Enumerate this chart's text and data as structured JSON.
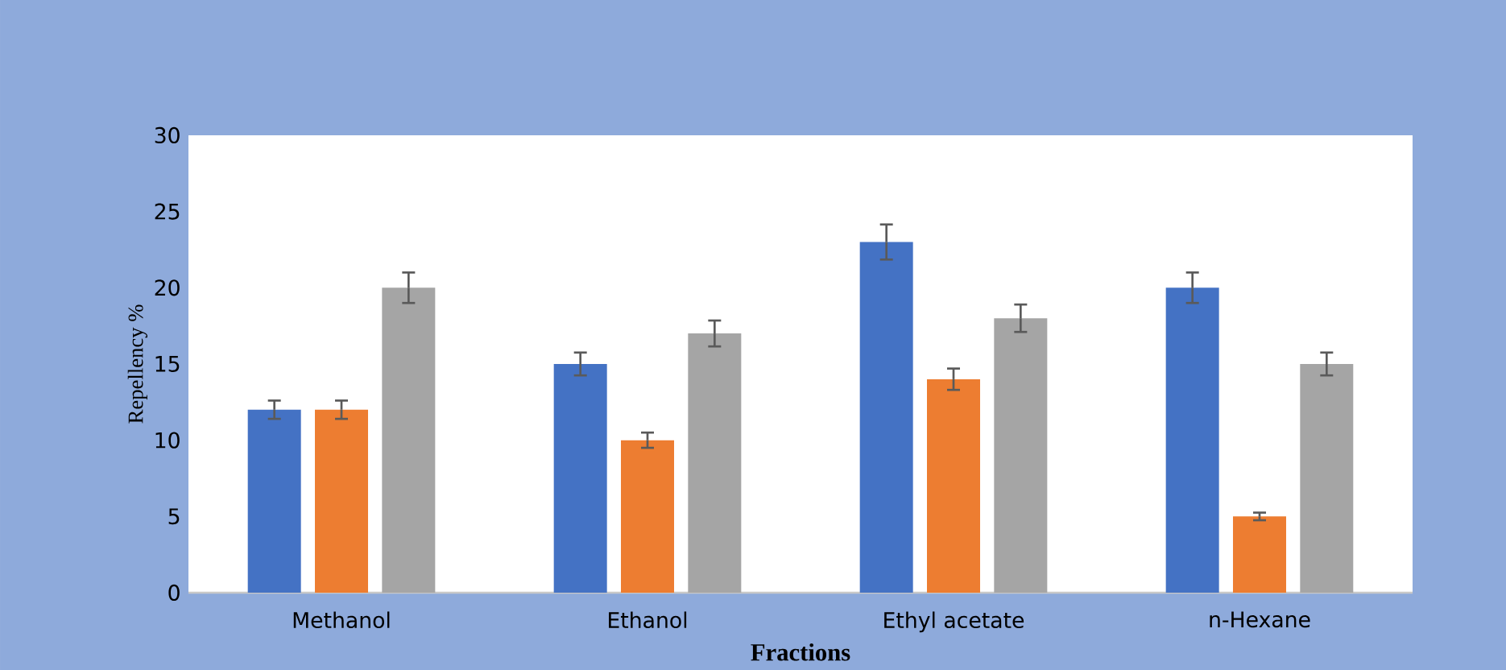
{
  "chart_data": {
    "type": "bar",
    "xlabel": "Fractions",
    "ylabel": "Repellency %",
    "categories": [
      "Methanol",
      "Ethanol",
      "Ethyl acetate",
      "n-Hexane"
    ],
    "series": [
      {
        "color": "#4472c4",
        "values": [
          12,
          15,
          23,
          20
        ],
        "errors": [
          0.6,
          0.75,
          1.15,
          1.0
        ]
      },
      {
        "color": "#ed7d31",
        "values": [
          12,
          10,
          14,
          5
        ],
        "errors": [
          0.6,
          0.5,
          0.7,
          0.25
        ]
      },
      {
        "color": "#a5a5a5",
        "values": [
          20,
          17,
          18,
          15
        ],
        "errors": [
          1.0,
          0.85,
          0.9,
          0.75
        ]
      }
    ],
    "ylim": [
      0,
      30
    ],
    "yticks": [
      0,
      5,
      10,
      15,
      20,
      25,
      30
    ],
    "grid": false
  }
}
